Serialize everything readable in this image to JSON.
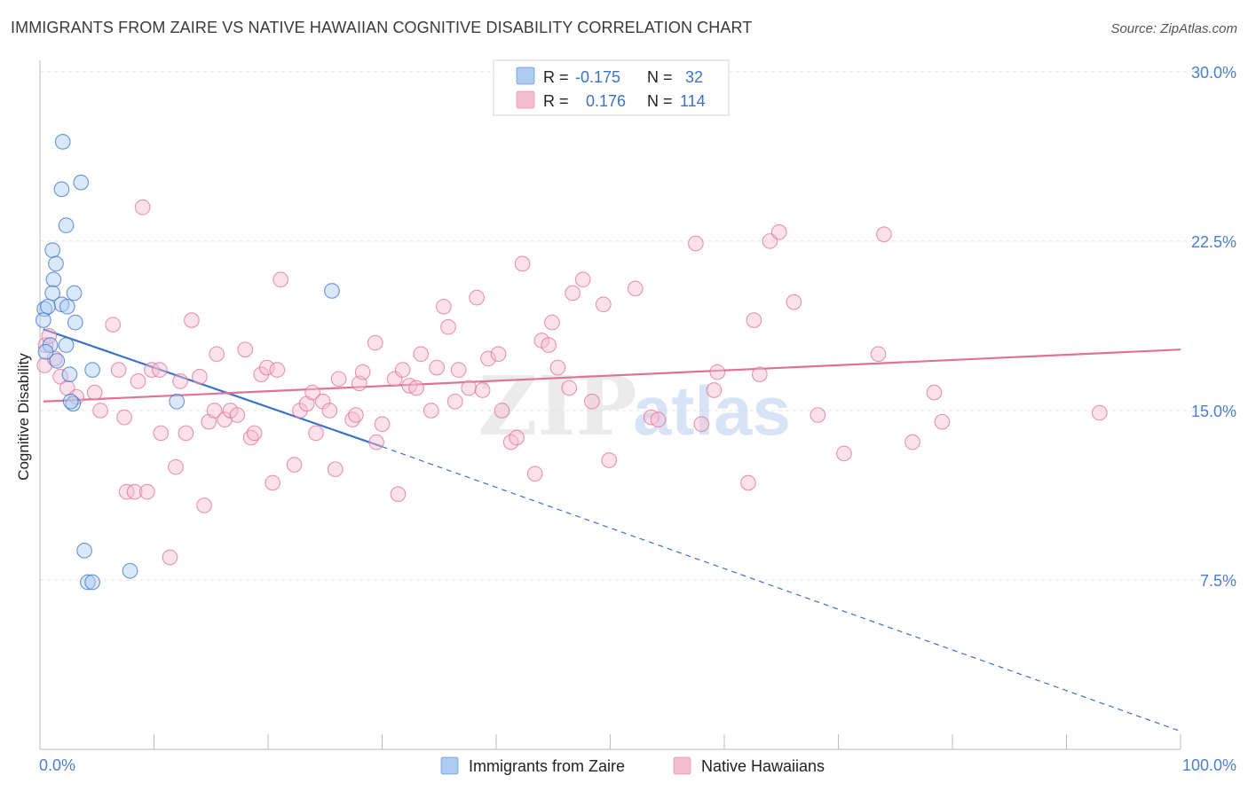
{
  "title": "IMMIGRANTS FROM ZAIRE VS NATIVE HAWAIIAN COGNITIVE DISABILITY CORRELATION CHART",
  "source": "Source: ZipAtlas.com",
  "watermark": {
    "zip": "ZIP",
    "atlas": "atlas"
  },
  "colors": {
    "blue": "#3a73c8",
    "blue_fill": "#aecbf1",
    "pink": "#e0719a",
    "pink_fill": "#f6bcd0",
    "tick_label": "#4a7fcf",
    "grid": "#e4e4e4"
  },
  "legend_top": [
    {
      "series": "blue",
      "r_label": "R =",
      "r_value": "-0.175",
      "n_label": "N =",
      "n_value": "32"
    },
    {
      "series": "pink",
      "r_label": "R =",
      "r_value": "0.176",
      "n_label": "N =",
      "n_value": "114"
    }
  ],
  "legend_bottom": [
    {
      "series": "blue",
      "label": "Immigrants from Zaire"
    },
    {
      "series": "pink",
      "label": "Native Hawaiians"
    }
  ],
  "chart_data": {
    "type": "scatter",
    "xlabel": "",
    "ylabel": "Cognitive Disability",
    "xlim": [
      0,
      100
    ],
    "ylim": [
      0,
      31
    ],
    "x_tick_labels": [
      "0.0%",
      "100.0%"
    ],
    "y_ticks": [
      {
        "value": 7.5,
        "label": "7.5%"
      },
      {
        "value": 15.0,
        "label": "15.0%"
      },
      {
        "value": 22.5,
        "label": "22.5%"
      },
      {
        "value": 30.0,
        "label": "30.0%"
      }
    ],
    "series": [
      {
        "name": "Immigrants from Zaire",
        "color_key": "blue",
        "trend": {
          "x0": 0.3,
          "y0": 18.6,
          "x1": 30,
          "y1": 13.4,
          "dash_x1": 100,
          "dash_y1": 0.8
        },
        "points": [
          [
            2.0,
            26.9
          ],
          [
            1.9,
            24.8
          ],
          [
            3.6,
            25.1
          ],
          [
            2.3,
            23.2
          ],
          [
            1.1,
            22.1
          ],
          [
            1.4,
            21.5
          ],
          [
            1.2,
            20.8
          ],
          [
            1.1,
            20.2
          ],
          [
            3.0,
            20.2
          ],
          [
            1.9,
            19.7
          ],
          [
            2.4,
            19.6
          ],
          [
            0.4,
            19.5
          ],
          [
            0.7,
            19.6
          ],
          [
            0.3,
            19.0
          ],
          [
            3.1,
            18.9
          ],
          [
            25.6,
            20.3
          ],
          [
            0.9,
            17.9
          ],
          [
            2.3,
            17.9
          ],
          [
            1.5,
            17.2
          ],
          [
            0.5,
            17.6
          ],
          [
            4.6,
            16.8
          ],
          [
            2.6,
            16.6
          ],
          [
            2.9,
            15.3
          ],
          [
            2.7,
            15.4
          ],
          [
            12.0,
            15.4
          ],
          [
            3.9,
            8.8
          ],
          [
            4.2,
            7.4
          ],
          [
            4.6,
            7.4
          ],
          [
            7.9,
            7.9
          ]
        ]
      },
      {
        "name": "Native Hawaiians",
        "color_key": "pink",
        "trend": {
          "x0": 0.3,
          "y0": 15.4,
          "x1": 100,
          "y1": 17.7
        },
        "points": [
          [
            0.5,
            17.9
          ],
          [
            0.8,
            18.3
          ],
          [
            0.4,
            17.0
          ],
          [
            1.3,
            17.3
          ],
          [
            1.8,
            16.5
          ],
          [
            2.4,
            16.0
          ],
          [
            3.2,
            15.6
          ],
          [
            4.8,
            15.8
          ],
          [
            5.3,
            15.0
          ],
          [
            6.4,
            18.8
          ],
          [
            6.9,
            16.8
          ],
          [
            7.4,
            14.7
          ],
          [
            7.6,
            11.4
          ],
          [
            8.3,
            11.4
          ],
          [
            8.6,
            16.3
          ],
          [
            9.0,
            24.0
          ],
          [
            9.4,
            11.4
          ],
          [
            9.8,
            16.8
          ],
          [
            10.5,
            16.8
          ],
          [
            10.6,
            14.0
          ],
          [
            11.4,
            8.5
          ],
          [
            11.9,
            12.5
          ],
          [
            12.3,
            16.3
          ],
          [
            12.8,
            14.0
          ],
          [
            13.3,
            19.0
          ],
          [
            14.0,
            16.5
          ],
          [
            14.4,
            10.8
          ],
          [
            14.8,
            14.5
          ],
          [
            15.5,
            17.5
          ],
          [
            15.3,
            15.0
          ],
          [
            16.2,
            14.6
          ],
          [
            16.7,
            15.0
          ],
          [
            17.3,
            14.8
          ],
          [
            18.0,
            17.7
          ],
          [
            18.5,
            13.8
          ],
          [
            18.8,
            14.0
          ],
          [
            19.4,
            16.6
          ],
          [
            19.9,
            16.9
          ],
          [
            20.4,
            11.8
          ],
          [
            20.8,
            16.8
          ],
          [
            21.1,
            20.8
          ],
          [
            22.3,
            12.6
          ],
          [
            22.8,
            15.0
          ],
          [
            23.4,
            15.3
          ],
          [
            23.9,
            15.8
          ],
          [
            24.2,
            14.0
          ],
          [
            24.8,
            15.4
          ],
          [
            25.4,
            15.0
          ],
          [
            25.9,
            12.4
          ],
          [
            26.2,
            16.4
          ],
          [
            27.4,
            14.6
          ],
          [
            27.7,
            14.8
          ],
          [
            28.0,
            16.2
          ],
          [
            28.3,
            16.7
          ],
          [
            29.5,
            13.6
          ],
          [
            30.0,
            14.4
          ],
          [
            29.4,
            18.0
          ],
          [
            31.1,
            16.4
          ],
          [
            31.4,
            11.3
          ],
          [
            31.8,
            16.8
          ],
          [
            32.4,
            16.1
          ],
          [
            33.0,
            16.0
          ],
          [
            33.4,
            17.5
          ],
          [
            34.3,
            15.0
          ],
          [
            34.8,
            16.9
          ],
          [
            35.4,
            19.6
          ],
          [
            35.8,
            18.7
          ],
          [
            36.4,
            15.4
          ],
          [
            36.7,
            16.8
          ],
          [
            37.6,
            16.0
          ],
          [
            38.3,
            20.0
          ],
          [
            38.8,
            15.9
          ],
          [
            39.3,
            17.3
          ],
          [
            40.2,
            17.5
          ],
          [
            40.5,
            15.0
          ],
          [
            41.3,
            13.6
          ],
          [
            41.8,
            13.8
          ],
          [
            42.3,
            21.5
          ],
          [
            43.4,
            12.2
          ],
          [
            44.0,
            18.1
          ],
          [
            44.6,
            17.9
          ],
          [
            44.9,
            18.9
          ],
          [
            45.4,
            16.9
          ],
          [
            46.4,
            16.0
          ],
          [
            46.7,
            20.2
          ],
          [
            47.6,
            20.8
          ],
          [
            48.4,
            15.4
          ],
          [
            49.4,
            19.7
          ],
          [
            49.9,
            12.8
          ],
          [
            52.2,
            20.4
          ],
          [
            53.6,
            14.7
          ],
          [
            54.2,
            14.6
          ],
          [
            57.5,
            22.4
          ],
          [
            58.0,
            14.4
          ],
          [
            59.1,
            15.9
          ],
          [
            59.4,
            16.7
          ],
          [
            62.1,
            11.8
          ],
          [
            62.6,
            19.0
          ],
          [
            63.1,
            16.6
          ],
          [
            64.0,
            22.5
          ],
          [
            64.8,
            22.9
          ],
          [
            66.1,
            19.8
          ],
          [
            68.2,
            14.8
          ],
          [
            70.5,
            13.1
          ],
          [
            73.5,
            17.5
          ],
          [
            74.0,
            22.8
          ],
          [
            76.5,
            13.6
          ],
          [
            78.4,
            15.8
          ],
          [
            79.1,
            14.5
          ],
          [
            92.9,
            14.9
          ]
        ]
      }
    ]
  }
}
